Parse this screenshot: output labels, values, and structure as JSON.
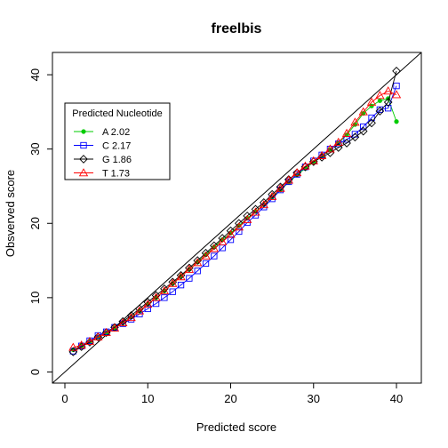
{
  "chart_data": {
    "type": "line",
    "title": "freelbis",
    "xlabel": "Predicted score",
    "ylabel": "Obsverved score",
    "xlim": [
      -1.5,
      43
    ],
    "ylim": [
      -1.5,
      43
    ],
    "xticks": [
      "0",
      "10",
      "20",
      "30",
      "40"
    ],
    "yticks": [
      "0",
      "10",
      "20",
      "30",
      "40"
    ],
    "grid": false,
    "reference_line": "y = x",
    "legend": {
      "title": "Predicted Nucleotide",
      "position": "top-left"
    },
    "series": [
      {
        "name": "A 2.02",
        "color": "#00cc00",
        "marker": "filled-circle",
        "x": [
          1,
          2,
          3,
          4,
          5,
          6,
          7,
          8,
          9,
          10,
          11,
          12,
          13,
          14,
          15,
          16,
          17,
          18,
          19,
          20,
          21,
          22,
          23,
          24,
          25,
          26,
          27,
          28,
          29,
          30,
          31,
          32,
          33,
          34,
          35,
          36,
          37,
          38,
          39,
          40
        ],
        "y": [
          3.0,
          3.5,
          4.1,
          4.7,
          5.3,
          5.9,
          6.6,
          7.4,
          8.2,
          9.1,
          10.0,
          10.9,
          11.9,
          12.9,
          13.8,
          14.8,
          15.8,
          16.8,
          17.8,
          18.7,
          19.7,
          20.7,
          21.6,
          22.5,
          23.5,
          24.5,
          25.5,
          26.5,
          27.4,
          28.2,
          29.0,
          29.9,
          30.8,
          31.9,
          33.3,
          34.8,
          35.8,
          36.5,
          36.8,
          33.7
        ]
      },
      {
        "name": "C 2.17",
        "color": "#0000ff",
        "marker": "open-square",
        "x": [
          1,
          2,
          3,
          4,
          5,
          6,
          7,
          8,
          9,
          10,
          11,
          12,
          13,
          14,
          15,
          16,
          17,
          18,
          19,
          20,
          21,
          22,
          23,
          24,
          25,
          26,
          27,
          28,
          29,
          30,
          31,
          32,
          33,
          34,
          35,
          36,
          37,
          38,
          39,
          40
        ],
        "y": [
          2.8,
          3.5,
          4.2,
          4.9,
          5.4,
          6.0,
          6.5,
          7.1,
          7.8,
          8.5,
          9.2,
          10.0,
          10.8,
          11.7,
          12.6,
          13.6,
          14.6,
          15.6,
          16.7,
          17.8,
          18.9,
          20.1,
          21.1,
          22.2,
          23.3,
          24.5,
          25.6,
          26.6,
          27.6,
          28.4,
          29.2,
          30.0,
          30.7,
          31.3,
          32.0,
          33.0,
          34.2,
          35.3,
          35.5,
          38.5
        ]
      },
      {
        "name": "G 1.86",
        "color": "#000000",
        "marker": "open-diamond",
        "x": [
          1,
          2,
          3,
          4,
          5,
          6,
          7,
          8,
          9,
          10,
          11,
          12,
          13,
          14,
          15,
          16,
          17,
          18,
          19,
          20,
          21,
          22,
          23,
          24,
          25,
          26,
          27,
          28,
          29,
          30,
          31,
          32,
          33,
          34,
          35,
          36,
          37,
          38,
          39,
          40
        ],
        "y": [
          2.7,
          3.4,
          4.0,
          4.7,
          5.3,
          6.0,
          6.8,
          7.6,
          8.5,
          9.4,
          10.3,
          11.2,
          12.1,
          13.0,
          14.0,
          15.0,
          16.0,
          17.0,
          18.0,
          19.0,
          20.0,
          21.0,
          21.9,
          22.8,
          23.9,
          24.9,
          25.9,
          26.8,
          27.6,
          28.3,
          28.9,
          29.5,
          30.2,
          30.8,
          31.6,
          32.4,
          33.5,
          35.1,
          36.3,
          40.5
        ]
      },
      {
        "name": "T 1.73",
        "color": "#ff0000",
        "marker": "open-triangle",
        "x": [
          1,
          2,
          3,
          4,
          5,
          6,
          7,
          8,
          9,
          10,
          11,
          12,
          13,
          14,
          15,
          16,
          17,
          18,
          19,
          20,
          21,
          22,
          23,
          24,
          25,
          26,
          27,
          28,
          29,
          30,
          31,
          32,
          33,
          34,
          35,
          36,
          37,
          38,
          39,
          40
        ],
        "y": [
          3.3,
          3.6,
          4.1,
          4.7,
          5.3,
          5.9,
          6.6,
          7.3,
          8.2,
          9.1,
          10.0,
          10.9,
          11.9,
          12.8,
          13.8,
          14.7,
          15.6,
          16.6,
          17.5,
          18.5,
          19.5,
          20.5,
          21.5,
          22.5,
          23.6,
          24.7,
          25.8,
          26.8,
          27.7,
          28.4,
          29.1,
          30.0,
          30.9,
          32.1,
          33.6,
          35.0,
          36.3,
          37.2,
          37.8,
          37.3
        ]
      }
    ]
  }
}
